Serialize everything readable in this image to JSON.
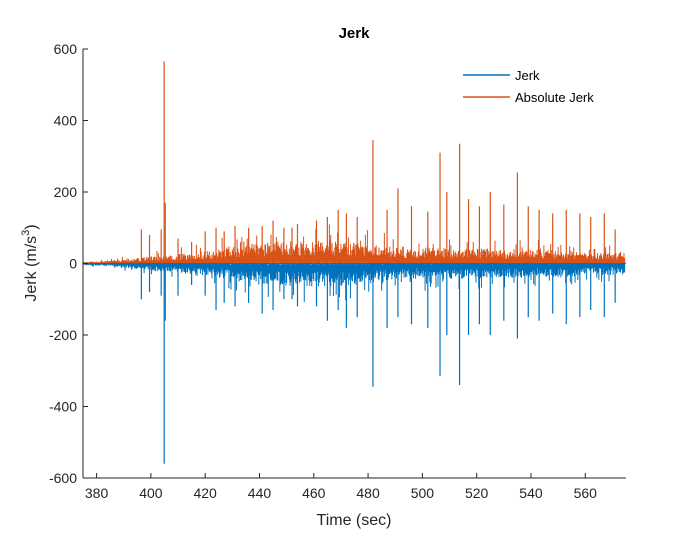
{
  "chart_data": {
    "type": "line",
    "title": "Jerk",
    "xlabel": "Time (sec)",
    "ylabel_prefix": "Jerk (m/s",
    "ylabel_sup": "3",
    "ylabel_suffix": ")",
    "xlim": [
      375,
      575
    ],
    "ylim": [
      -600,
      600
    ],
    "xticks": [
      380,
      400,
      420,
      440,
      460,
      480,
      500,
      520,
      540,
      560
    ],
    "yticks": [
      600,
      400,
      200,
      0,
      -200,
      -400,
      -600
    ],
    "grid": false,
    "legend_position": "top-right",
    "series": [
      {
        "name": "Jerk",
        "color": "#0072BD",
        "spikes": [
          [
            396.5,
            -100
          ],
          [
            399.5,
            -80
          ],
          [
            403.8,
            -90
          ],
          [
            404.9,
            -560
          ],
          [
            405.3,
            -160
          ],
          [
            410,
            -90
          ],
          [
            415,
            -60
          ],
          [
            420,
            -90
          ],
          [
            424,
            -130
          ],
          [
            427,
            -110
          ],
          [
            431,
            -120
          ],
          [
            436,
            -110
          ],
          [
            441,
            -140
          ],
          [
            445,
            -130
          ],
          [
            449,
            -100
          ],
          [
            452,
            -100
          ],
          [
            454,
            -120
          ],
          [
            461,
            -120
          ],
          [
            465,
            -160
          ],
          [
            469,
            -130
          ],
          [
            472,
            -180
          ],
          [
            476,
            -150
          ],
          [
            481.8,
            -345
          ],
          [
            487,
            -180
          ],
          [
            491,
            -150
          ],
          [
            496,
            -170
          ],
          [
            502,
            -180
          ],
          [
            506.5,
            -315
          ],
          [
            509,
            -200
          ],
          [
            513.7,
            -340
          ],
          [
            517,
            -200
          ],
          [
            521,
            -170
          ],
          [
            525,
            -200
          ],
          [
            530,
            -160
          ],
          [
            535,
            -210
          ],
          [
            539,
            -150
          ],
          [
            543,
            -160
          ],
          [
            548,
            -140
          ],
          [
            553,
            -170
          ],
          [
            558,
            -150
          ],
          [
            562,
            -130
          ],
          [
            567,
            -150
          ],
          [
            571,
            -110
          ]
        ]
      },
      {
        "name": "Absolute Jerk",
        "color": "#D95319",
        "spikes": [
          [
            396.5,
            95
          ],
          [
            399.5,
            80
          ],
          [
            403.8,
            95
          ],
          [
            404.9,
            565
          ],
          [
            405.3,
            170
          ],
          [
            410,
            70
          ],
          [
            415,
            60
          ],
          [
            420,
            90
          ],
          [
            424,
            100
          ],
          [
            427,
            90
          ],
          [
            431,
            105
          ],
          [
            436,
            100
          ],
          [
            441,
            105
          ],
          [
            445,
            120
          ],
          [
            449,
            100
          ],
          [
            452,
            100
          ],
          [
            454,
            110
          ],
          [
            461,
            120
          ],
          [
            465,
            130
          ],
          [
            469,
            150
          ],
          [
            472,
            140
          ],
          [
            476,
            130
          ],
          [
            481.8,
            345
          ],
          [
            487,
            150
          ],
          [
            491,
            210
          ],
          [
            496,
            160
          ],
          [
            502,
            145
          ],
          [
            506.5,
            310
          ],
          [
            509,
            200
          ],
          [
            513.7,
            335
          ],
          [
            517,
            180
          ],
          [
            521,
            160
          ],
          [
            525,
            200
          ],
          [
            530,
            165
          ],
          [
            535,
            255
          ],
          [
            539,
            160
          ],
          [
            543,
            150
          ],
          [
            548,
            140
          ],
          [
            553,
            150
          ],
          [
            558,
            140
          ],
          [
            562,
            130
          ],
          [
            567,
            140
          ],
          [
            571,
            95
          ]
        ]
      }
    ]
  }
}
